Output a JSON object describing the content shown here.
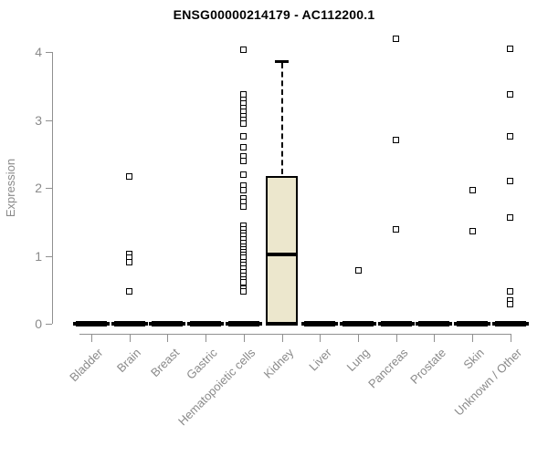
{
  "chart_data": {
    "type": "boxplot",
    "title": "ENSG00000214179 - AC112200.1",
    "ylabel": "Expression",
    "ylim": [
      0,
      4
    ],
    "yticks": [
      0,
      1,
      2,
      3,
      4
    ],
    "grid": false,
    "categories": [
      "Bladder",
      "Brain",
      "Breast",
      "Gastric",
      "Hematopoietic cells",
      "Kidney",
      "Liver",
      "Lung",
      "Pancreas",
      "Prostate",
      "Skin",
      "Unknown / Other"
    ],
    "boxes": [
      {
        "category": "Bladder",
        "q1": 0,
        "median": 0,
        "q3": 0,
        "whisker_low": 0,
        "whisker_high": 0,
        "outliers": []
      },
      {
        "category": "Brain",
        "q1": 0,
        "median": 0,
        "q3": 0,
        "whisker_low": 0,
        "whisker_high": 0,
        "outliers": [
          2.17,
          1.03,
          0.97,
          0.91,
          0.47
        ]
      },
      {
        "category": "Breast",
        "q1": 0,
        "median": 0,
        "q3": 0,
        "whisker_low": 0,
        "whisker_high": 0,
        "outliers": []
      },
      {
        "category": "Gastric",
        "q1": 0,
        "median": 0,
        "q3": 0,
        "whisker_low": 0,
        "whisker_high": 0,
        "outliers": []
      },
      {
        "category": "Hematopoietic cells",
        "q1": 0,
        "median": 0,
        "q3": 0,
        "whisker_low": 0,
        "whisker_high": 0,
        "outliers": [
          4.03,
          3.37,
          3.3,
          3.24,
          3.18,
          3.12,
          3.06,
          3.0,
          2.95,
          2.76,
          2.6,
          2.46,
          2.39,
          2.2,
          2.03,
          1.96,
          1.85,
          1.79,
          1.72,
          1.44,
          1.39,
          1.34,
          1.29,
          1.24,
          1.19,
          1.14,
          1.09,
          1.05,
          1.01,
          0.97,
          0.91,
          0.86,
          0.81,
          0.76,
          0.7,
          0.65,
          0.61,
          0.52,
          0.47
        ]
      },
      {
        "category": "Kidney",
        "q1": 0,
        "median": 1.02,
        "q3": 2.18,
        "whisker_low": 0,
        "whisker_high": 3.87,
        "outliers": []
      },
      {
        "category": "Liver",
        "q1": 0,
        "median": 0,
        "q3": 0,
        "whisker_low": 0,
        "whisker_high": 0,
        "outliers": []
      },
      {
        "category": "Lung",
        "q1": 0,
        "median": 0,
        "q3": 0,
        "whisker_low": 0,
        "whisker_high": 0,
        "outliers": [
          0.79
        ]
      },
      {
        "category": "Pancreas",
        "q1": 0,
        "median": 0,
        "q3": 0,
        "whisker_low": 0,
        "whisker_high": 0,
        "outliers": [
          4.2,
          2.7,
          1.39
        ]
      },
      {
        "category": "Prostate",
        "q1": 0,
        "median": 0,
        "q3": 0,
        "whisker_low": 0,
        "whisker_high": 0,
        "outliers": []
      },
      {
        "category": "Skin",
        "q1": 0,
        "median": 0,
        "q3": 0,
        "whisker_low": 0,
        "whisker_high": 0,
        "outliers": [
          1.96,
          1.36
        ]
      },
      {
        "category": "Unknown / Other",
        "q1": 0,
        "median": 0,
        "q3": 0,
        "whisker_low": 0,
        "whisker_high": 0,
        "outliers": [
          4.05,
          3.38,
          2.76,
          2.1,
          1.56,
          0.48,
          0.34,
          0.29
        ]
      }
    ],
    "style": {
      "box_fill": "#ECE7CD",
      "box_border": "#000000",
      "median_color": "#000000",
      "whisker_color": "#000000",
      "outlier_color": "#000000",
      "axis_color": "#909090",
      "tick_label_color": "#8a8a8a",
      "title_color": "#000000",
      "background": "#ffffff"
    }
  }
}
